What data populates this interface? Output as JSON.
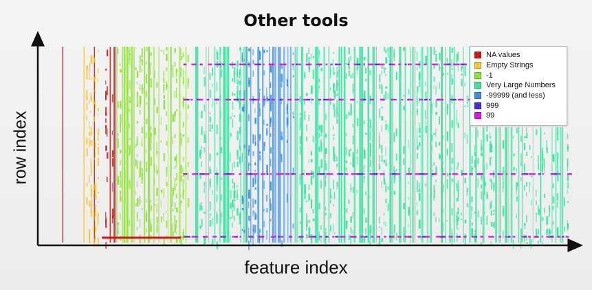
{
  "slide": {
    "title": "Other tools"
  },
  "chart_data": {
    "type": "heatmap",
    "title": "",
    "xlabel": "feature index",
    "ylabel": "row index",
    "axis_ticks": false,
    "legend": {
      "position": "top-right",
      "entries": [
        {
          "name": "NA values",
          "color": "#cc1a1a"
        },
        {
          "name": "Empty Strings",
          "color": "#f2c53d"
        },
        {
          "name": "-1",
          "color": "#8ee03a"
        },
        {
          "name": "Very Large Numbers",
          "color": "#3ee0a0"
        },
        {
          "name": "-99999 (and less)",
          "color": "#3a8fe0"
        },
        {
          "name": "999",
          "color": "#4a2ad8"
        },
        {
          "name": "99",
          "color": "#d81ad8"
        }
      ]
    },
    "series": [
      {
        "name": "NA values",
        "columns": [
          0.04,
          0.1
        ],
        "column_ranges": [
          [
            0.12,
            0.14
          ]
        ]
      },
      {
        "name": "Empty Strings",
        "column_ranges": [
          [
            0.08,
            0.11
          ]
        ]
      },
      {
        "name": "-1",
        "column_ranges": [
          [
            0.14,
            0.28
          ]
        ]
      },
      {
        "name": "Very Large Numbers",
        "column_ranges": [
          [
            0.29,
            0.39
          ],
          [
            0.48,
            1.0
          ]
        ]
      },
      {
        "name": "-99999 (and less)",
        "column_ranges": [
          [
            0.38,
            0.48
          ]
        ]
      },
      {
        "name": "999",
        "rows": [
          0.09,
          0.27,
          0.65,
          0.97
        ]
      },
      {
        "name": "99",
        "rows": [
          0.09,
          0.27,
          0.65,
          0.97
        ]
      }
    ]
  }
}
